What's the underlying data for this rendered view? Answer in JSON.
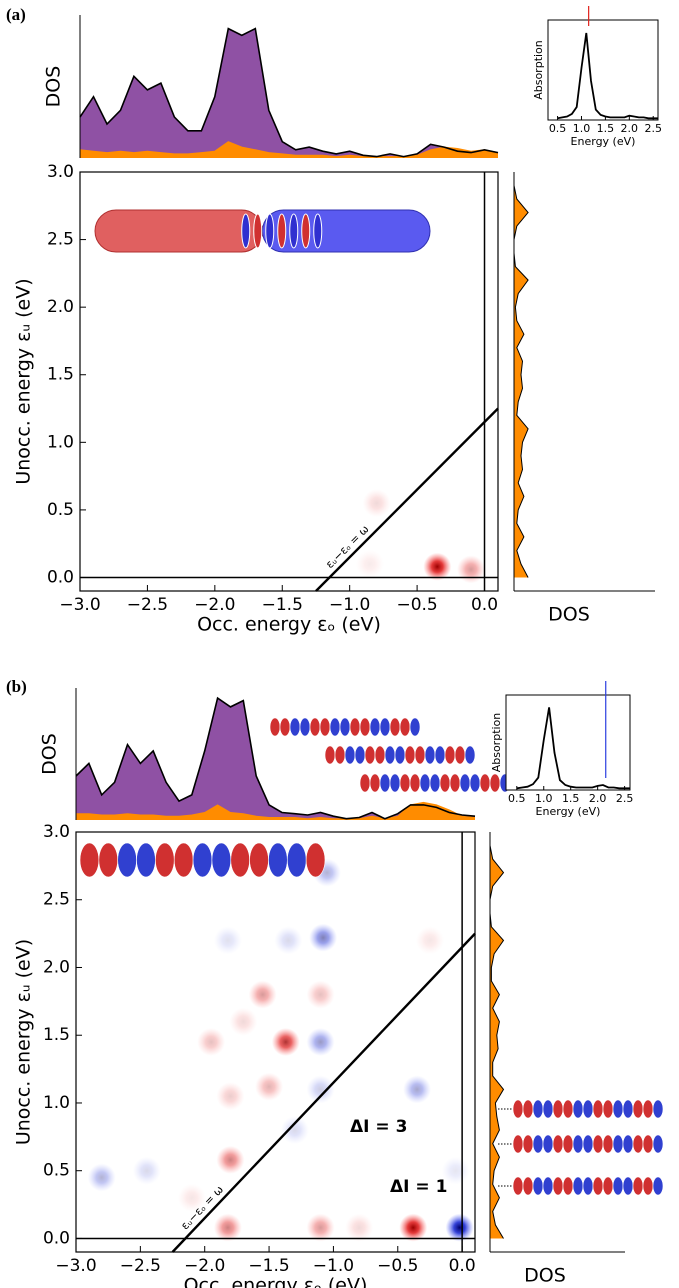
{
  "chart_data": [
    {
      "type": "tcm",
      "label": "(a)",
      "xlabel": "Occ. energy εₒ (eV)",
      "ylabel": "Unocc. energy εᵤ (eV)",
      "dos_ylabel": "DOS",
      "dos_xlabel": "DOS",
      "xlim": [
        -3,
        0.1
      ],
      "ylim": [
        -0.1,
        3
      ],
      "xticks": [
        {
          "value": -3,
          "label": "−3.0"
        },
        {
          "value": -2.5,
          "label": "−2.5"
        },
        {
          "value": -2,
          "label": "−2.0"
        },
        {
          "value": -1.5,
          "label": "−1.5"
        },
        {
          "value": -1,
          "label": "−1.0"
        },
        {
          "value": -0.5,
          "label": "−0.5"
        },
        {
          "value": 0,
          "label": "0.0"
        }
      ],
      "yticks": [
        {
          "value": 0,
          "label": "0.0"
        },
        0.5,
        {
          "value": 1,
          "label": "1.0"
        },
        1.5,
        {
          "value": 2,
          "label": "2.0"
        },
        2.5,
        {
          "value": 3,
          "label": "3.0"
        }
      ],
      "line_label": "εᵤ−εₒ = ω",
      "omega": 1.15,
      "spots": {
        "x": [
          -0.35,
          -0.1,
          -0.8,
          -0.85
        ],
        "y": [
          0.08,
          0.06,
          0.55,
          0.1
        ],
        "weight": [
          1.0,
          0.4,
          0.15,
          0.08
        ]
      },
      "dos_ylim": [
        0,
        1.05
      ],
      "occ_dos": {
        "x": [
          -3.0,
          -2.9,
          -2.8,
          -2.7,
          -2.6,
          -2.5,
          -2.4,
          -2.3,
          -2.2,
          -2.1,
          -2.0,
          -1.9,
          -1.8,
          -1.7,
          -1.6,
          -1.5,
          -1.4,
          -1.3,
          -1.2,
          -1.1,
          -1.0,
          -0.9,
          -0.8,
          -0.7,
          -0.6,
          -0.5,
          -0.4,
          -0.3,
          -0.2,
          -0.1,
          0.0,
          0.1
        ],
        "total": [
          0.3,
          0.45,
          0.25,
          0.35,
          0.6,
          0.5,
          0.55,
          0.3,
          0.2,
          0.2,
          0.45,
          0.95,
          0.9,
          0.95,
          0.35,
          0.12,
          0.06,
          0.08,
          0.05,
          0.03,
          0.05,
          0.02,
          0.01,
          0.03,
          0.01,
          0.03,
          0.1,
          0.08,
          0.05,
          0.04,
          0.06,
          0.04
        ],
        "partial": [
          0.06,
          0.05,
          0.04,
          0.05,
          0.04,
          0.05,
          0.04,
          0.03,
          0.03,
          0.04,
          0.05,
          0.12,
          0.08,
          0.06,
          0.04,
          0.03,
          0.02,
          0.02,
          0.02,
          0.01,
          0.02,
          0.01,
          0.01,
          0.01,
          0.01,
          0.02,
          0.06,
          0.08,
          0.07,
          0.05,
          0.06,
          0.04
        ]
      },
      "dos_xlim": [
        0,
        1
      ],
      "unocc_dos": {
        "y": [
          0.0,
          0.1,
          0.2,
          0.3,
          0.4,
          0.5,
          0.6,
          0.7,
          0.8,
          0.9,
          1.0,
          1.1,
          1.2,
          1.3,
          1.4,
          1.5,
          1.6,
          1.7,
          1.8,
          1.9,
          2.0,
          2.1,
          2.2,
          2.3,
          2.4,
          2.5,
          2.6,
          2.7,
          2.8,
          2.9,
          3.0
        ],
        "values": [
          0.1,
          0.05,
          0.02,
          0.07,
          0.02,
          0.03,
          0.07,
          0.03,
          0.06,
          0.05,
          0.06,
          0.1,
          0.02,
          0.03,
          0.06,
          0.05,
          0.06,
          0.02,
          0.07,
          0.02,
          0.01,
          0.03,
          0.1,
          0.01,
          0.0,
          0.0,
          0.02,
          0.1,
          0.02,
          0.0,
          0.0
        ]
      },
      "absorption": {
        "xlabel": "Energy (eV)",
        "ylabel": "Absorption",
        "xlim": [
          0.3,
          2.6
        ],
        "ylim": [
          0,
          1.15
        ],
        "xticks": [
          0.5,
          {
            "value": 1,
            "label": "1.0"
          },
          1.5,
          {
            "value": 2,
            "label": "2.0"
          },
          2.5
        ],
        "x": [
          0.5,
          0.6,
          0.7,
          0.8,
          0.9,
          1.0,
          1.1,
          1.2,
          1.3,
          1.4,
          1.5,
          1.6,
          1.7,
          1.8,
          1.9,
          2.0,
          2.1,
          2.2,
          2.3,
          2.4,
          2.5,
          2.6
        ],
        "y": [
          0.02,
          0.03,
          0.04,
          0.07,
          0.15,
          0.6,
          1.0,
          0.45,
          0.12,
          0.06,
          0.04,
          0.03,
          0.03,
          0.03,
          0.03,
          0.05,
          0.04,
          0.03,
          0.03,
          0.02,
          0.02,
          0.02
        ],
        "marker_color": "#e0201a"
      },
      "annotations": []
    },
    {
      "type": "tcm",
      "label": "(b)",
      "xlabel": "Occ. energy εₒ (eV)",
      "ylabel": "Unocc. energy εᵤ (eV)",
      "dos_ylabel": "DOS",
      "dos_xlabel": "DOS",
      "xlim": [
        -3,
        0.1
      ],
      "ylim": [
        -0.1,
        3
      ],
      "xticks": [
        {
          "value": -3,
          "label": "−3.0"
        },
        {
          "value": -2.5,
          "label": "−2.5"
        },
        {
          "value": -2,
          "label": "−2.0"
        },
        {
          "value": -1.5,
          "label": "−1.5"
        },
        {
          "value": -1,
          "label": "−1.0"
        },
        {
          "value": -0.5,
          "label": "−0.5"
        },
        {
          "value": 0,
          "label": "0.0"
        }
      ],
      "yticks": [
        {
          "value": 0,
          "label": "0.0"
        },
        0.5,
        {
          "value": 1,
          "label": "1.0"
        },
        1.5,
        {
          "value": 2,
          "label": "2.0"
        },
        2.5,
        {
          "value": 3,
          "label": "3.0"
        }
      ],
      "line_label": "εᵤ−εₒ = ω",
      "omega": 2.15,
      "spots": {
        "x": [
          -1.82,
          -1.1,
          -0.38,
          -1.37,
          -1.8,
          -1.55,
          -1.5,
          -1.8,
          -1.95,
          -1.1,
          -0.25,
          -2.1,
          -1.7,
          -0.8,
          -0.02,
          -1.08,
          -1.1,
          -0.35,
          -2.8,
          -1.05,
          -1.35,
          -1.82,
          -1.3,
          -1.1,
          -0.05,
          -2.45
        ],
        "y": [
          0.08,
          0.08,
          0.08,
          1.45,
          0.58,
          1.8,
          1.12,
          1.05,
          1.45,
          1.8,
          2.2,
          0.3,
          1.6,
          0.08,
          0.08,
          2.22,
          1.45,
          1.1,
          0.45,
          2.7,
          2.2,
          2.2,
          0.8,
          1.1,
          0.5,
          0.5
        ],
        "weight": [
          0.5,
          0.4,
          1.0,
          0.8,
          0.5,
          0.4,
          0.3,
          0.2,
          0.25,
          0.25,
          0.1,
          0.1,
          0.15,
          0.15,
          -1.0,
          -0.5,
          -0.4,
          -0.35,
          -0.3,
          -0.3,
          -0.15,
          -0.12,
          -0.15,
          -0.2,
          -0.1,
          -0.15
        ]
      },
      "dos_ylim": [
        0,
        1.05
      ],
      "occ_dos": {
        "x": [
          -3.0,
          -2.9,
          -2.8,
          -2.7,
          -2.6,
          -2.5,
          -2.4,
          -2.3,
          -2.2,
          -2.1,
          -2.0,
          -1.9,
          -1.8,
          -1.7,
          -1.6,
          -1.5,
          -1.4,
          -1.3,
          -1.2,
          -1.1,
          -1.0,
          -0.9,
          -0.8,
          -0.7,
          -0.6,
          -0.5,
          -0.4,
          -0.3,
          -0.2,
          -0.1,
          0.0,
          0.1
        ],
        "total": [
          0.35,
          0.45,
          0.2,
          0.3,
          0.6,
          0.45,
          0.55,
          0.3,
          0.15,
          0.2,
          0.55,
          0.97,
          0.9,
          0.95,
          0.35,
          0.12,
          0.06,
          0.05,
          0.04,
          0.06,
          0.03,
          0.01,
          0.02,
          0.06,
          0.01,
          0.05,
          0.12,
          0.12,
          0.1,
          0.06,
          0.04,
          0.03
        ],
        "partial": [
          0.05,
          0.05,
          0.04,
          0.04,
          0.05,
          0.04,
          0.04,
          0.03,
          0.03,
          0.04,
          0.06,
          0.12,
          0.06,
          0.05,
          0.03,
          0.02,
          0.02,
          0.02,
          0.01,
          0.02,
          0.01,
          0.01,
          0.01,
          0.03,
          0.01,
          0.03,
          0.12,
          0.14,
          0.12,
          0.08,
          0.03,
          0.02
        ]
      },
      "dos_xlim": [
        0,
        1
      ],
      "unocc_dos": {
        "y": [
          0.0,
          0.1,
          0.2,
          0.3,
          0.4,
          0.5,
          0.6,
          0.7,
          0.8,
          0.9,
          1.0,
          1.1,
          1.2,
          1.3,
          1.4,
          1.5,
          1.6,
          1.7,
          1.8,
          1.9,
          2.0,
          2.1,
          2.2,
          2.3,
          2.4,
          2.5,
          2.6,
          2.7,
          2.8,
          2.9,
          3.0
        ],
        "values": [
          0.1,
          0.04,
          0.02,
          0.07,
          0.02,
          0.03,
          0.07,
          0.02,
          0.07,
          0.05,
          0.04,
          0.1,
          0.02,
          0.02,
          0.06,
          0.05,
          0.07,
          0.02,
          0.07,
          0.01,
          0.01,
          0.03,
          0.1,
          0.01,
          0.0,
          0.0,
          0.02,
          0.1,
          0.02,
          0.0,
          0.0
        ]
      },
      "absorption": {
        "xlabel": "Energy (eV)",
        "ylabel": "Absorption",
        "xlim": [
          0.3,
          2.6
        ],
        "ylim": [
          0,
          1.15
        ],
        "xticks": [
          0.5,
          {
            "value": 1,
            "label": "1.0"
          },
          1.5,
          {
            "value": 2,
            "label": "2.0"
          },
          2.5
        ],
        "x": [
          0.5,
          0.6,
          0.7,
          0.8,
          0.9,
          1.0,
          1.1,
          1.2,
          1.3,
          1.4,
          1.5,
          1.6,
          1.7,
          1.8,
          1.9,
          2.0,
          2.1,
          2.2,
          2.3,
          2.4,
          2.5,
          2.6
        ],
        "y": [
          0.02,
          0.03,
          0.04,
          0.07,
          0.15,
          0.6,
          1.0,
          0.45,
          0.12,
          0.06,
          0.04,
          0.03,
          0.03,
          0.03,
          0.03,
          0.05,
          0.06,
          0.03,
          0.03,
          0.02,
          0.02,
          0.02
        ],
        "marker_color": "#2a3de0"
      },
      "annotations": [
        "ΔI = 3",
        "ΔI = 1"
      ]
    }
  ]
}
